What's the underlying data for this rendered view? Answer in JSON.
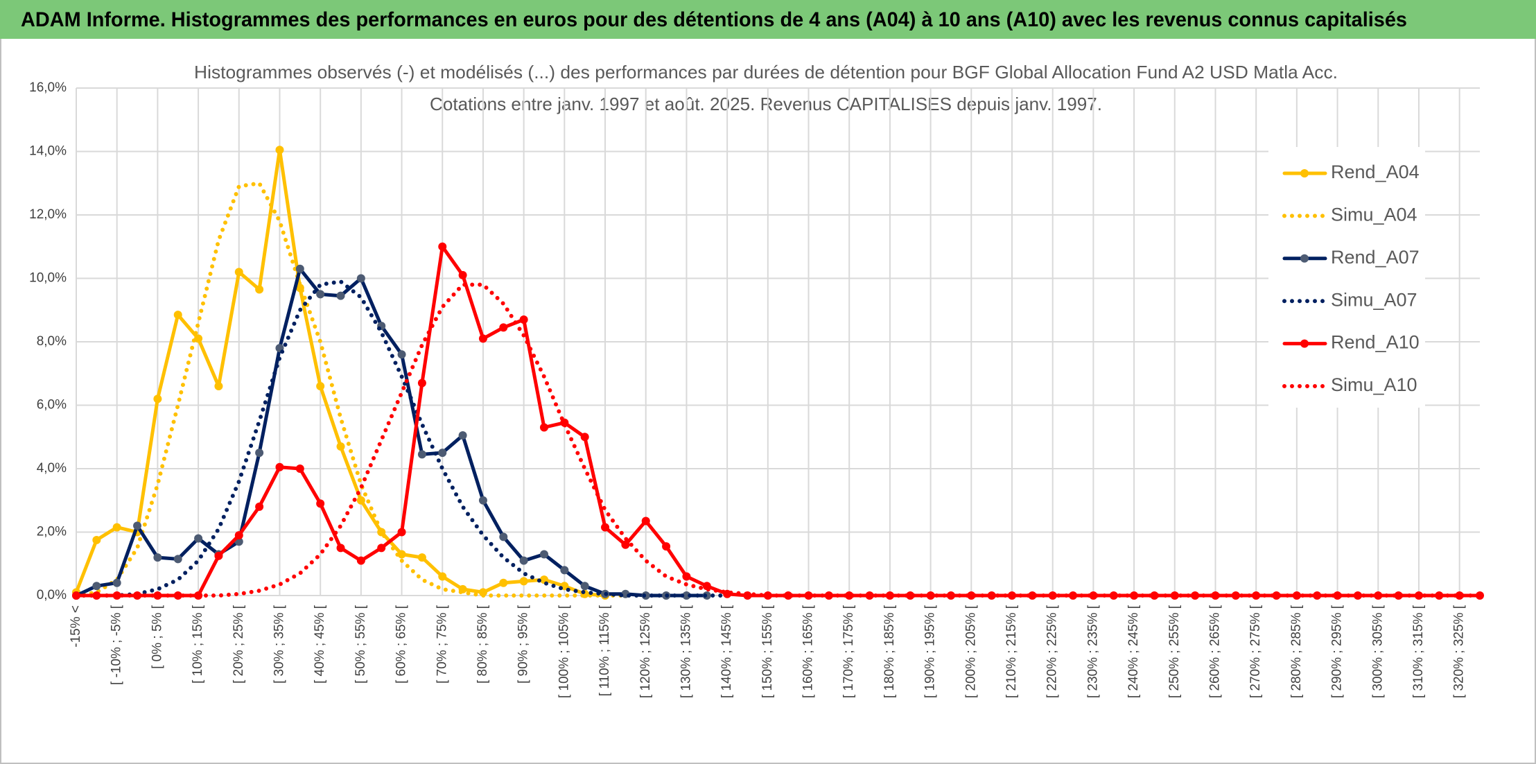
{
  "chart_data": {
    "type": "line",
    "header": "ADAM Informe. Histogrammes des performances en euros pour des détentions de 4 ans (A04) à 10 ans (A10) avec les revenus connus capitalisés",
    "title": "Histogrammes observés (-) et modélisés (...) des performances par durées de détention pour BGF Global Allocation Fund A2 USD Matla Acc.",
    "subtitle": "Cotations entre janv. 1997 et août. 2025. Revenus CAPITALISES depuis janv. 1997.",
    "categories": [
      "-15% <",
      null,
      "[ -10% ; -5% [",
      null,
      "[ 0% ; 5% [",
      null,
      "[ 10% ; 15% [",
      null,
      "[ 20% ; 25% [",
      null,
      "[ 30% ; 35% [",
      null,
      "[ 40% ; 45% [",
      null,
      "[ 50% ; 55% [",
      null,
      "[ 60% ; 65% [",
      null,
      "[ 70% ; 75% [",
      null,
      "[ 80% ; 85% [",
      null,
      "[ 90% ; 95% [",
      null,
      "[ 100% ; 105% [",
      null,
      "[ 110% ; 115% [",
      null,
      "[ 120% ; 125% [",
      null,
      "[ 130% ; 135% [",
      null,
      "[ 140% ; 145% [",
      null,
      "[ 150% ; 155% [",
      null,
      "[ 160% ; 165% [",
      null,
      "[ 170% ; 175% [",
      null,
      "[ 180% ; 185% [",
      null,
      "[ 190% ; 195% [",
      null,
      "[ 200% ; 205% [",
      null,
      "[ 210% ; 215% [",
      null,
      "[ 220% ; 225% [",
      null,
      "[ 230% ; 235% [",
      null,
      "[ 240% ; 245% [",
      null,
      "[ 250% ; 255% [",
      null,
      "[ 260% ; 265% [",
      null,
      "[ 270% ; 275% [",
      null,
      "[ 280% ; 285% [",
      null,
      "[ 290% ; 295% [",
      null,
      "[ 300% ; 305% [",
      null,
      "[ 310% ; 315% [",
      null,
      "[ 320% ; 325% [",
      null
    ],
    "series": [
      {
        "name": "Rend_A04",
        "color": "#ffc000",
        "style": "solid",
        "marker_color": "#ffc000",
        "values": [
          0.1,
          1.75,
          2.15,
          2.0,
          6.2,
          8.85,
          8.1,
          6.6,
          10.2,
          9.65,
          14.05,
          9.7,
          6.6,
          4.7,
          3.0,
          2.0,
          1.3,
          1.2,
          0.6,
          0.2,
          0.1,
          0.4,
          0.45,
          0.5,
          0.3,
          0.05,
          0,
          null,
          null,
          null,
          null,
          null,
          null,
          null,
          null,
          null,
          null,
          null,
          null,
          null,
          null,
          null,
          null,
          null,
          null,
          null,
          null,
          null,
          null,
          null,
          null,
          null,
          null,
          null,
          null,
          null,
          null,
          null,
          null,
          null,
          null,
          null,
          null,
          null,
          null,
          null,
          null,
          null,
          null,
          null
        ]
      },
      {
        "name": "Simu_A04",
        "color": "#ffc000",
        "style": "dotted",
        "values": [
          0,
          0.1,
          0.5,
          1.5,
          3.5,
          6.0,
          8.6,
          11.2,
          12.9,
          13.0,
          11.8,
          9.8,
          8.0,
          5.6,
          3.5,
          2.0,
          1.1,
          0.5,
          0.2,
          0.1,
          0,
          0,
          0,
          0,
          0,
          0,
          0,
          0,
          null,
          null,
          null,
          null,
          null,
          null,
          null,
          null,
          null,
          null,
          null,
          null,
          null,
          null,
          null,
          null,
          null,
          null,
          null,
          null,
          null,
          null,
          null,
          null,
          null,
          null,
          null,
          null,
          null,
          null,
          null,
          null,
          null,
          null,
          null,
          null,
          null,
          null,
          null,
          null,
          null,
          null
        ]
      },
      {
        "name": "Rend_A07",
        "color": "#002060",
        "style": "solid",
        "marker_color": "#4d5b73",
        "values": [
          0,
          0.3,
          0.4,
          2.2,
          1.2,
          1.15,
          1.8,
          1.3,
          1.7,
          4.5,
          7.8,
          10.3,
          9.5,
          9.45,
          10.0,
          8.5,
          7.6,
          4.45,
          4.5,
          5.05,
          3.0,
          1.85,
          1.1,
          1.3,
          0.8,
          0.3,
          0.05,
          0.05,
          0,
          0,
          0,
          0,
          null,
          null,
          null,
          null,
          null,
          null,
          null,
          null,
          null,
          null,
          null,
          null,
          null,
          null,
          null,
          null,
          null,
          null,
          null,
          null,
          null,
          null,
          null,
          null,
          null,
          null,
          null,
          null,
          null,
          null,
          null,
          null,
          null,
          null,
          null,
          null,
          null,
          null
        ]
      },
      {
        "name": "Simu_A07",
        "color": "#002060",
        "style": "dotted",
        "values": [
          0,
          0,
          0,
          0.05,
          0.2,
          0.5,
          1.1,
          2.1,
          3.6,
          5.5,
          7.5,
          9.0,
          9.8,
          9.9,
          9.4,
          8.3,
          6.9,
          5.4,
          4.0,
          2.8,
          1.9,
          1.2,
          0.7,
          0.4,
          0.2,
          0.1,
          0.05,
          0,
          0,
          0,
          0,
          0,
          0,
          null,
          null,
          null,
          null,
          null,
          null,
          null,
          null,
          null,
          null,
          null,
          null,
          null,
          null,
          null,
          null,
          null,
          null,
          null,
          null,
          null,
          null,
          null,
          null,
          null,
          null,
          null,
          null,
          null,
          null,
          null,
          null,
          null,
          null,
          null,
          null,
          null
        ]
      },
      {
        "name": "Rend_A10",
        "color": "#ff0000",
        "style": "solid",
        "marker_color": "#ff0000",
        "values": [
          0,
          0,
          0,
          0,
          0,
          0,
          0,
          1.25,
          1.9,
          2.8,
          4.05,
          4.0,
          2.9,
          1.5,
          1.1,
          1.5,
          2.0,
          6.7,
          11.0,
          10.1,
          8.1,
          8.45,
          8.7,
          5.3,
          5.45,
          5.0,
          2.15,
          1.6,
          2.35,
          1.55,
          0.6,
          0.3,
          0.05,
          0,
          0,
          0,
          0,
          0,
          0,
          0,
          0,
          0,
          0,
          0,
          0,
          0,
          0,
          0,
          0,
          0,
          0,
          0,
          0,
          0,
          0,
          0,
          0,
          0,
          0,
          0,
          0,
          0,
          0,
          0,
          0,
          0,
          0,
          0,
          0,
          0
        ]
      },
      {
        "name": "Simu_A10",
        "color": "#ff0000",
        "style": "dotted",
        "values": [
          0,
          0,
          0,
          0,
          0,
          0,
          0,
          0,
          0.05,
          0.15,
          0.35,
          0.7,
          1.3,
          2.2,
          3.4,
          4.9,
          6.4,
          7.9,
          9.1,
          9.8,
          9.8,
          9.2,
          8.2,
          6.9,
          5.4,
          4.0,
          2.7,
          1.8,
          1.1,
          0.6,
          0.35,
          0.2,
          0.1,
          0.05,
          0,
          0,
          0,
          0,
          0,
          0,
          0,
          0,
          0,
          0,
          0,
          0,
          0,
          0,
          0,
          0,
          0,
          0,
          0,
          0,
          0,
          0,
          0,
          0,
          0,
          0,
          0,
          0,
          0,
          0,
          0,
          0,
          0,
          0,
          0,
          0
        ]
      }
    ],
    "ylim": [
      0,
      16
    ],
    "yticks": [
      {
        "value": 0,
        "label": "0,0%"
      },
      {
        "value": 2,
        "label": "2,0%"
      },
      {
        "value": 4,
        "label": "4,0%"
      },
      {
        "value": 6,
        "label": "6,0%"
      },
      {
        "value": 8,
        "label": "8,0%"
      },
      {
        "value": 10,
        "label": "10,0%"
      },
      {
        "value": 12,
        "label": "12,0%"
      },
      {
        "value": 14,
        "label": "14,0%"
      },
      {
        "value": 16,
        "label": "16,0%"
      }
    ],
    "grid": true
  }
}
